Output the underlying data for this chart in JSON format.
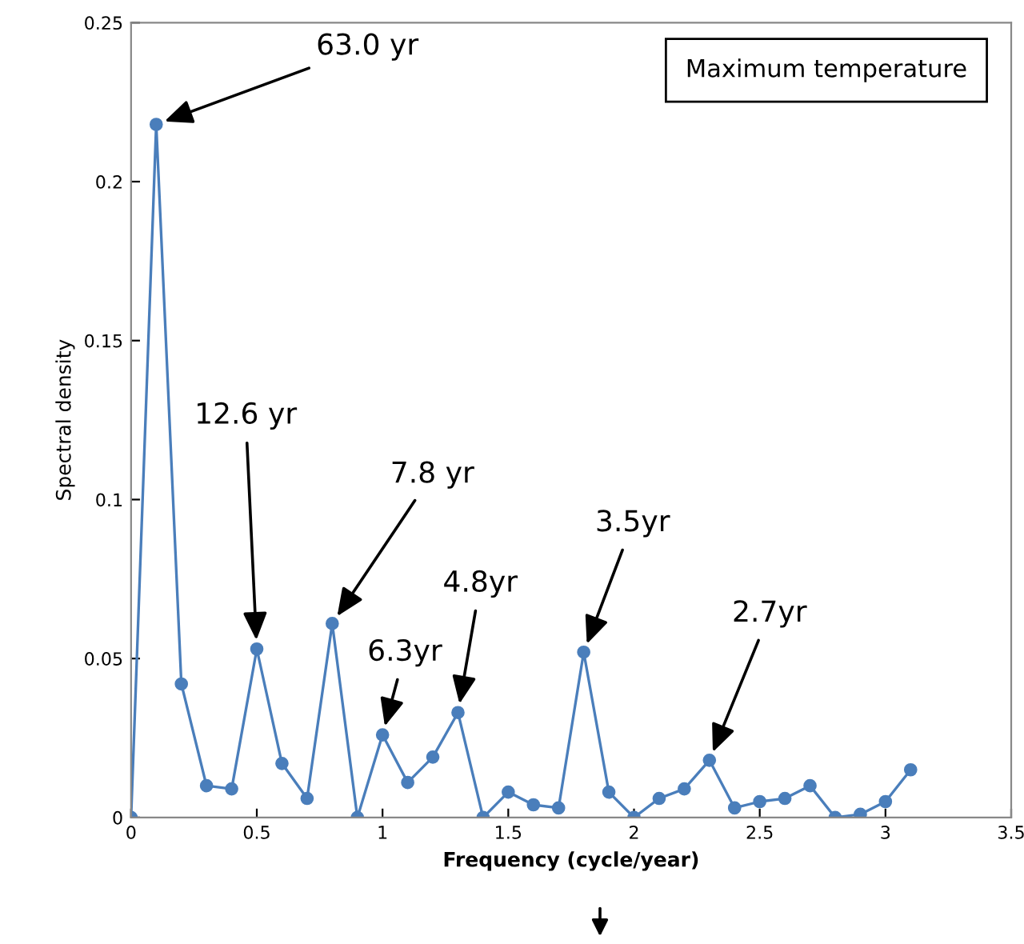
{
  "chart_data": {
    "type": "line",
    "title": "Maximum temperature",
    "xlabel": "Frequency (cycle/year)",
    "ylabel": "Spectral density",
    "x": [
      0,
      0.1,
      0.2,
      0.3,
      0.4,
      0.5,
      0.6,
      0.7,
      0.8,
      0.9,
      1.0,
      1.1,
      1.2,
      1.3,
      1.4,
      1.5,
      1.6,
      1.7,
      1.8,
      1.9,
      2.0,
      2.1,
      2.2,
      2.3,
      2.4,
      2.5,
      2.6,
      2.7,
      2.8,
      2.9,
      3.0,
      3.1
    ],
    "series": [
      {
        "color": "#4a7ebb",
        "values": [
          0,
          0.218,
          0.042,
          0.01,
          0.009,
          0.053,
          0.017,
          0.006,
          0.061,
          0,
          0.026,
          0.011,
          0.019,
          0.033,
          0,
          0.008,
          0.004,
          0.003,
          0.052,
          0.008,
          0,
          0.006,
          0.009,
          0.018,
          0.003,
          0.005,
          0.006,
          0.01,
          0,
          0.001,
          0.005,
          0.015
        ]
      }
    ],
    "annotations": [
      {
        "text": "63.0 yr",
        "x": 0.1,
        "y": 0.218
      },
      {
        "text": "12.6 yr",
        "x": 0.5,
        "y": 0.053
      },
      {
        "text": "7.8 yr",
        "x": 0.8,
        "y": 0.061
      },
      {
        "text": "6.3yr",
        "x": 1.0,
        "y": 0.026
      },
      {
        "text": "4.8yr",
        "x": 1.3,
        "y": 0.033
      },
      {
        "text": "3.5yr",
        "x": 1.8,
        "y": 0.052
      },
      {
        "text": "2.7yr",
        "x": 2.3,
        "y": 0.018
      }
    ],
    "xlim": [
      0,
      3.5
    ],
    "xticks": [
      0,
      0.5,
      1,
      1.5,
      2,
      2.5,
      3,
      3.5
    ],
    "ylim": [
      0,
      0.25
    ],
    "yticks": [
      0,
      0.05,
      0.1,
      0.15,
      0.2,
      0.25
    ],
    "marker": "circle",
    "line_style": "solid",
    "grid": false,
    "legend": false
  }
}
